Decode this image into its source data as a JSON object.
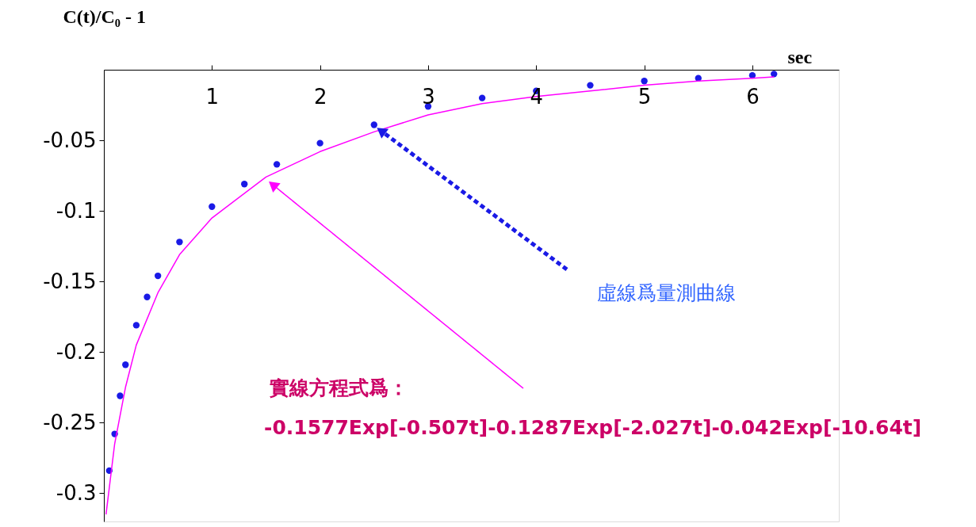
{
  "chart_data": {
    "type": "scatter",
    "xlabel": "sec",
    "ylabel": "C(t)/C₀ - 1",
    "xlim": [
      0,
      6.8
    ],
    "ylim": [
      -0.32,
      0
    ],
    "xticks": [
      1,
      2,
      3,
      4,
      5,
      6
    ],
    "yticks": [
      -0.3,
      -0.25,
      -0.2,
      -0.15,
      -0.1,
      -0.05
    ],
    "grid": false,
    "series": [
      {
        "marker": "circle",
        "color": "#1a1ae6",
        "x": [
          0.05,
          0.1,
          0.15,
          0.2,
          0.3,
          0.4,
          0.5,
          0.7,
          1.0,
          1.3,
          1.6,
          2.0,
          2.5,
          3.0,
          3.5,
          4.0,
          4.5,
          5.0,
          5.5,
          6.0,
          6.2
        ],
        "values": [
          -0.284,
          -0.258,
          -0.231,
          -0.209,
          -0.181,
          -0.161,
          -0.146,
          -0.122,
          -0.097,
          -0.081,
          -0.067,
          -0.052,
          -0.039,
          -0.026,
          -0.02,
          -0.015,
          -0.011,
          -0.008,
          -0.006,
          -0.004,
          -0.003
        ]
      },
      {
        "type": "line",
        "marker": "none",
        "color": "#ff00ff",
        "x": [
          0.02,
          0.1,
          0.2,
          0.3,
          0.5,
          0.7,
          1.0,
          1.5,
          2.0,
          2.5,
          3.0,
          3.5,
          4.0,
          4.5,
          5.0,
          5.5,
          6.0,
          6.2
        ],
        "values": [
          -0.315,
          -0.265,
          -0.225,
          -0.195,
          -0.158,
          -0.131,
          -0.105,
          -0.076,
          -0.058,
          -0.044,
          -0.032,
          -0.024,
          -0.019,
          -0.015,
          -0.011,
          -0.008,
          -0.006,
          -0.005
        ]
      }
    ],
    "annotations": [
      "虛線爲量測曲線",
      "實線方程式爲：",
      "-0.1577Exp[-0.507t]-0.1287Exp[-2.027t]-0.042Exp[-10.64t]"
    ]
  }
}
